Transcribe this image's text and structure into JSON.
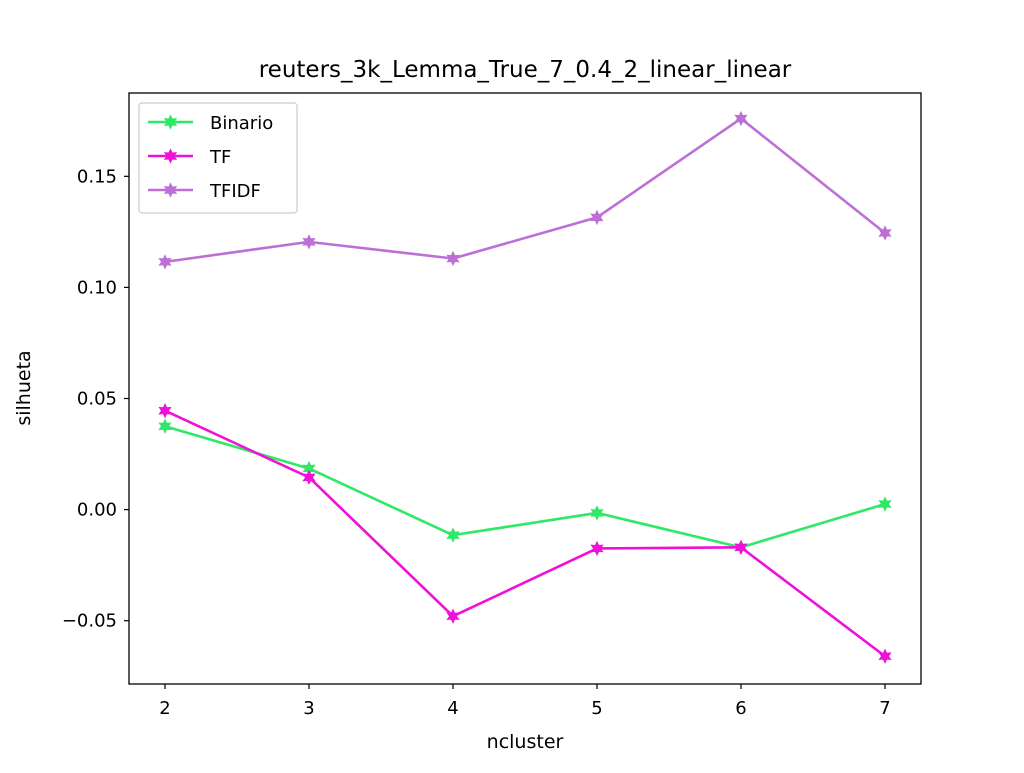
{
  "chart_data": {
    "type": "line",
    "title": "reuters_3k_Lemma_True_7_0.4_2_linear_linear",
    "xlabel": "ncluster",
    "ylabel": "silhueta",
    "x": [
      2,
      3,
      4,
      5,
      6,
      7
    ],
    "x_ticks": [
      "2",
      "3",
      "4",
      "5",
      "6",
      "7"
    ],
    "xlim": [
      1.75,
      7.25
    ],
    "ylim": [
      -0.0785,
      0.1875
    ],
    "y_ticks": [
      -0.05,
      0.0,
      0.05,
      0.1,
      0.15
    ],
    "y_tick_labels": [
      "−0.05",
      "0.00",
      "0.05",
      "0.10",
      "0.15"
    ],
    "grid": false,
    "legend_position": "upper-left",
    "marker": "star",
    "series": [
      {
        "name": "Binario",
        "color": "#2ee866",
        "values": [
          0.0375,
          0.0185,
          -0.0115,
          -0.0015,
          -0.017,
          0.0025
        ]
      },
      {
        "name": "TF",
        "color": "#f010d8",
        "values": [
          0.0445,
          0.0145,
          -0.048,
          -0.0175,
          -0.017,
          -0.066
        ]
      },
      {
        "name": "TFIDF",
        "color": "#bd6fd6",
        "values": [
          0.1115,
          0.1205,
          0.113,
          0.1315,
          0.176,
          0.1245
        ]
      }
    ]
  }
}
